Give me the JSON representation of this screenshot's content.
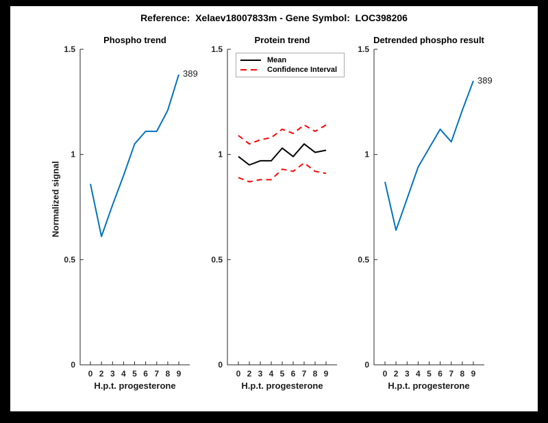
{
  "window": {
    "frame_color": "#000000",
    "canvas_color": "#ffffff"
  },
  "figure_title": "Reference:  Xelaev18007833m - Gene Symbol:  LOC398206",
  "axis_color": "#262626",
  "accent_blue": "#0072BD",
  "accent_red": "#FF0000",
  "chart_data": [
    {
      "type": "line",
      "title": "Phospho trend",
      "xlabel": "H.p.t. progesterone",
      "ylabel": "Normalized signal",
      "x_ticklabels": [
        "0",
        "2",
        "3",
        "4",
        "5",
        "6",
        "7",
        "8",
        "9"
      ],
      "y_ticks": [
        0,
        0.5,
        1,
        1.5
      ],
      "y_ticklabels": [
        "0",
        "0.5",
        "1",
        "1.5"
      ],
      "ylim": [
        0,
        1.5
      ],
      "grid": false,
      "legend": null,
      "annotation": "389",
      "series": [
        {
          "name": "phospho-signal",
          "color": "#0072BD",
          "style": "solid",
          "values": [
            0.86,
            0.61,
            0.76,
            0.9,
            1.05,
            1.11,
            1.11,
            1.21,
            1.38
          ]
        }
      ]
    },
    {
      "type": "line",
      "title": "Protein trend",
      "xlabel": "H.p.t. progesterone",
      "ylabel": "",
      "x_ticklabels": [
        "0",
        "2",
        "3",
        "4",
        "5",
        "6",
        "7",
        "8",
        "9"
      ],
      "y_ticks": [
        0,
        0.5,
        1,
        1.5
      ],
      "y_ticklabels": [
        "0",
        "0.5",
        "1",
        "1.5"
      ],
      "ylim": [
        0,
        1.5
      ],
      "grid": false,
      "legend": {
        "position": "top-left",
        "entries": [
          {
            "label": "Mean",
            "color": "#000000",
            "style": "solid"
          },
          {
            "label": "Confidence Interval",
            "color": "#FF0000",
            "style": "dashed"
          }
        ]
      },
      "annotation": null,
      "series": [
        {
          "name": "protein-mean",
          "color": "#000000",
          "style": "solid",
          "values": [
            0.99,
            0.95,
            0.97,
            0.97,
            1.03,
            0.99,
            1.05,
            1.01,
            1.02
          ]
        },
        {
          "name": "confidence-interval-upper",
          "color": "#FF0000",
          "style": "dashed",
          "values": [
            1.09,
            1.05,
            1.07,
            1.08,
            1.12,
            1.1,
            1.14,
            1.11,
            1.14
          ]
        },
        {
          "name": "confidence-interval-lower",
          "color": "#FF0000",
          "style": "dashed",
          "values": [
            0.89,
            0.87,
            0.88,
            0.88,
            0.93,
            0.92,
            0.96,
            0.92,
            0.91
          ]
        }
      ]
    },
    {
      "type": "line",
      "title": "Detrended phospho result",
      "xlabel": "H.p.t. progesterone",
      "ylabel": "",
      "x_ticklabels": [
        "0",
        "2",
        "3",
        "4",
        "5",
        "6",
        "7",
        "8",
        "9"
      ],
      "y_ticks": [
        0,
        0.5,
        1,
        1.5
      ],
      "y_ticklabels": [
        "0",
        "0.5",
        "1",
        "1.5"
      ],
      "ylim": [
        0,
        1.5
      ],
      "grid": false,
      "legend": null,
      "annotation": "389",
      "series": [
        {
          "name": "detrended-phospho-signal",
          "color": "#0072BD",
          "style": "solid",
          "values": [
            0.87,
            0.64,
            0.79,
            0.94,
            1.03,
            1.12,
            1.06,
            1.21,
            1.35
          ]
        }
      ]
    }
  ]
}
